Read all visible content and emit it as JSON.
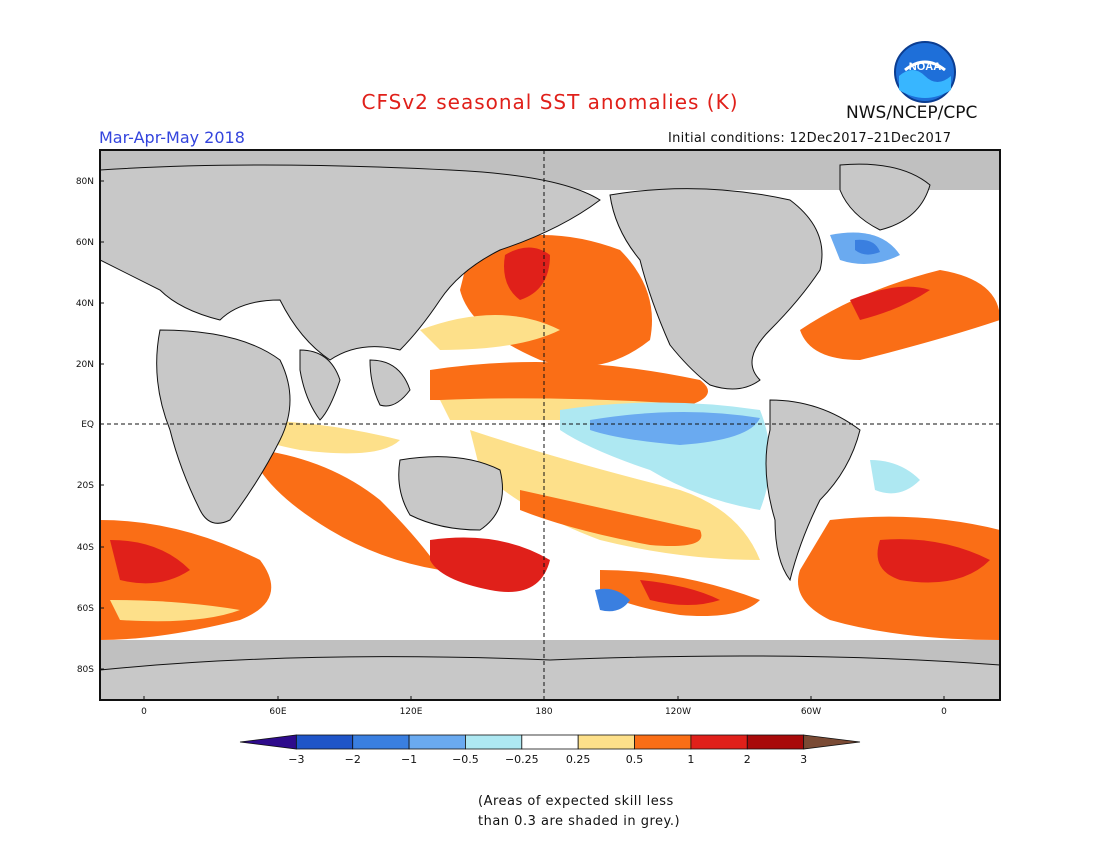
{
  "header": {
    "title": "CFSv2 seasonal SST anomalies (K)",
    "agency": "NWS/NCEP/CPC",
    "logo_text": "NOAA",
    "season": "Mar-Apr-May 2018",
    "initial_conditions": "Initial conditions: 12Dec2017–21Dec2017"
  },
  "map": {
    "land_color": "#c8c8c8",
    "grey_skill_color": "#c0c0c0",
    "lat_labels": [
      "80N",
      "60N",
      "40N",
      "20N",
      "EQ",
      "20S",
      "40S",
      "60S",
      "80S"
    ],
    "lon_labels": [
      "0",
      "60E",
      "120E",
      "180",
      "120W",
      "60W",
      "0"
    ]
  },
  "colorbar": {
    "tick_labels": [
      "−3",
      "−2",
      "−1",
      "−0.5",
      "−0.25",
      "0.25",
      "0.5",
      "1",
      "2",
      "3"
    ],
    "colors": [
      "#2e0b8c",
      "#1f55c8",
      "#3a7fe0",
      "#6aaaf0",
      "#aee8f2",
      "#ffffff",
      "#fde08a",
      "#fa6e16",
      "#e0201a",
      "#a80a0a",
      "#7a4a34"
    ]
  },
  "footnote": {
    "line1": "(Areas of expected skill less",
    "line2": "than 0.3 are shaded in grey.)"
  }
}
